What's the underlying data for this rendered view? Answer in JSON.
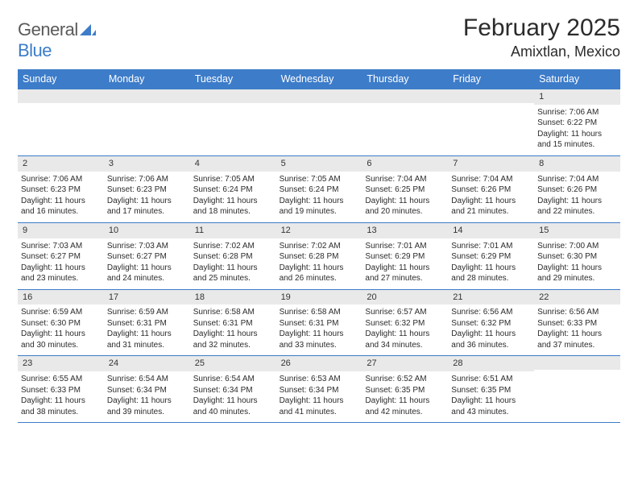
{
  "brand": {
    "part1": "General",
    "part2": "Blue"
  },
  "title": "February 2025",
  "location": "Amixtlan, Mexico",
  "colors": {
    "header_bg": "#3d7cc9",
    "header_text": "#ffffff",
    "daynum_bg": "#e9e9e9",
    "border": "#3d7cc9",
    "logo_gray": "#5a5a5a",
    "logo_blue": "#3d7cc9",
    "text": "#2b2b2b"
  },
  "day_names": [
    "Sunday",
    "Monday",
    "Tuesday",
    "Wednesday",
    "Thursday",
    "Friday",
    "Saturday"
  ],
  "weeks": [
    [
      {
        "n": "",
        "l": []
      },
      {
        "n": "",
        "l": []
      },
      {
        "n": "",
        "l": []
      },
      {
        "n": "",
        "l": []
      },
      {
        "n": "",
        "l": []
      },
      {
        "n": "",
        "l": []
      },
      {
        "n": "1",
        "l": [
          "Sunrise: 7:06 AM",
          "Sunset: 6:22 PM",
          "Daylight: 11 hours and 15 minutes."
        ]
      }
    ],
    [
      {
        "n": "2",
        "l": [
          "Sunrise: 7:06 AM",
          "Sunset: 6:23 PM",
          "Daylight: 11 hours and 16 minutes."
        ]
      },
      {
        "n": "3",
        "l": [
          "Sunrise: 7:06 AM",
          "Sunset: 6:23 PM",
          "Daylight: 11 hours and 17 minutes."
        ]
      },
      {
        "n": "4",
        "l": [
          "Sunrise: 7:05 AM",
          "Sunset: 6:24 PM",
          "Daylight: 11 hours and 18 minutes."
        ]
      },
      {
        "n": "5",
        "l": [
          "Sunrise: 7:05 AM",
          "Sunset: 6:24 PM",
          "Daylight: 11 hours and 19 minutes."
        ]
      },
      {
        "n": "6",
        "l": [
          "Sunrise: 7:04 AM",
          "Sunset: 6:25 PM",
          "Daylight: 11 hours and 20 minutes."
        ]
      },
      {
        "n": "7",
        "l": [
          "Sunrise: 7:04 AM",
          "Sunset: 6:26 PM",
          "Daylight: 11 hours and 21 minutes."
        ]
      },
      {
        "n": "8",
        "l": [
          "Sunrise: 7:04 AM",
          "Sunset: 6:26 PM",
          "Daylight: 11 hours and 22 minutes."
        ]
      }
    ],
    [
      {
        "n": "9",
        "l": [
          "Sunrise: 7:03 AM",
          "Sunset: 6:27 PM",
          "Daylight: 11 hours and 23 minutes."
        ]
      },
      {
        "n": "10",
        "l": [
          "Sunrise: 7:03 AM",
          "Sunset: 6:27 PM",
          "Daylight: 11 hours and 24 minutes."
        ]
      },
      {
        "n": "11",
        "l": [
          "Sunrise: 7:02 AM",
          "Sunset: 6:28 PM",
          "Daylight: 11 hours and 25 minutes."
        ]
      },
      {
        "n": "12",
        "l": [
          "Sunrise: 7:02 AM",
          "Sunset: 6:28 PM",
          "Daylight: 11 hours and 26 minutes."
        ]
      },
      {
        "n": "13",
        "l": [
          "Sunrise: 7:01 AM",
          "Sunset: 6:29 PM",
          "Daylight: 11 hours and 27 minutes."
        ]
      },
      {
        "n": "14",
        "l": [
          "Sunrise: 7:01 AM",
          "Sunset: 6:29 PM",
          "Daylight: 11 hours and 28 minutes."
        ]
      },
      {
        "n": "15",
        "l": [
          "Sunrise: 7:00 AM",
          "Sunset: 6:30 PM",
          "Daylight: 11 hours and 29 minutes."
        ]
      }
    ],
    [
      {
        "n": "16",
        "l": [
          "Sunrise: 6:59 AM",
          "Sunset: 6:30 PM",
          "Daylight: 11 hours and 30 minutes."
        ]
      },
      {
        "n": "17",
        "l": [
          "Sunrise: 6:59 AM",
          "Sunset: 6:31 PM",
          "Daylight: 11 hours and 31 minutes."
        ]
      },
      {
        "n": "18",
        "l": [
          "Sunrise: 6:58 AM",
          "Sunset: 6:31 PM",
          "Daylight: 11 hours and 32 minutes."
        ]
      },
      {
        "n": "19",
        "l": [
          "Sunrise: 6:58 AM",
          "Sunset: 6:31 PM",
          "Daylight: 11 hours and 33 minutes."
        ]
      },
      {
        "n": "20",
        "l": [
          "Sunrise: 6:57 AM",
          "Sunset: 6:32 PM",
          "Daylight: 11 hours and 34 minutes."
        ]
      },
      {
        "n": "21",
        "l": [
          "Sunrise: 6:56 AM",
          "Sunset: 6:32 PM",
          "Daylight: 11 hours and 36 minutes."
        ]
      },
      {
        "n": "22",
        "l": [
          "Sunrise: 6:56 AM",
          "Sunset: 6:33 PM",
          "Daylight: 11 hours and 37 minutes."
        ]
      }
    ],
    [
      {
        "n": "23",
        "l": [
          "Sunrise: 6:55 AM",
          "Sunset: 6:33 PM",
          "Daylight: 11 hours and 38 minutes."
        ]
      },
      {
        "n": "24",
        "l": [
          "Sunrise: 6:54 AM",
          "Sunset: 6:34 PM",
          "Daylight: 11 hours and 39 minutes."
        ]
      },
      {
        "n": "25",
        "l": [
          "Sunrise: 6:54 AM",
          "Sunset: 6:34 PM",
          "Daylight: 11 hours and 40 minutes."
        ]
      },
      {
        "n": "26",
        "l": [
          "Sunrise: 6:53 AM",
          "Sunset: 6:34 PM",
          "Daylight: 11 hours and 41 minutes."
        ]
      },
      {
        "n": "27",
        "l": [
          "Sunrise: 6:52 AM",
          "Sunset: 6:35 PM",
          "Daylight: 11 hours and 42 minutes."
        ]
      },
      {
        "n": "28",
        "l": [
          "Sunrise: 6:51 AM",
          "Sunset: 6:35 PM",
          "Daylight: 11 hours and 43 minutes."
        ]
      },
      {
        "n": "",
        "l": []
      }
    ]
  ]
}
